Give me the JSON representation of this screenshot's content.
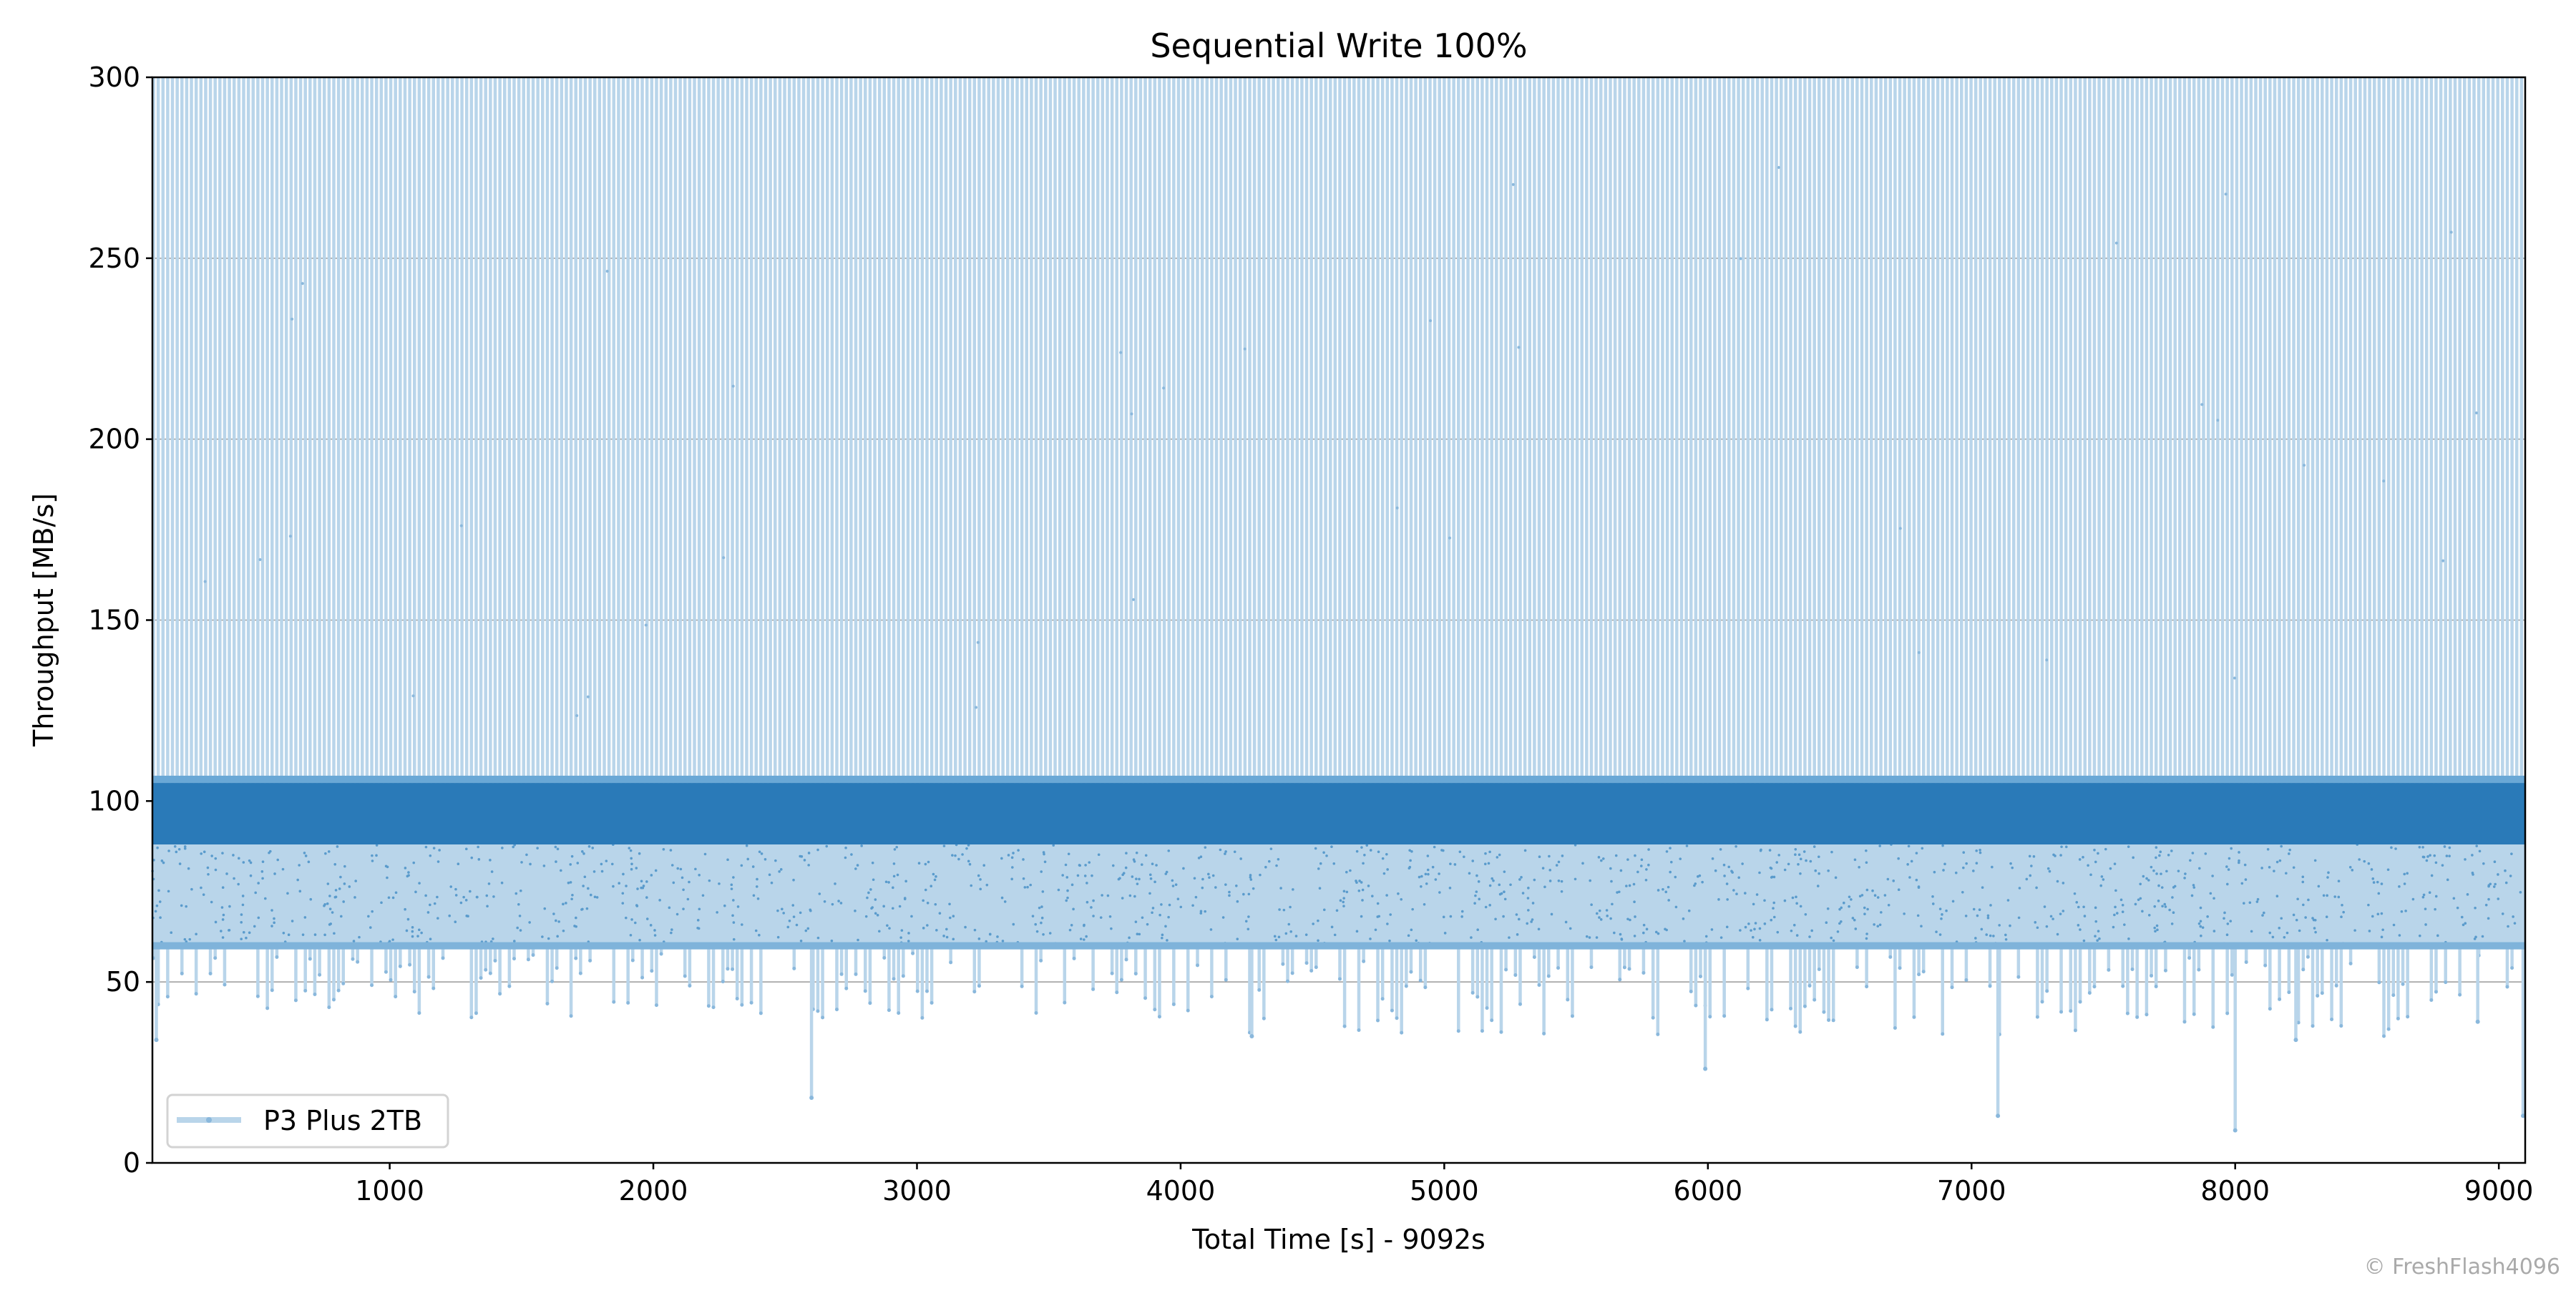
{
  "chart_data": {
    "type": "line",
    "title": "Sequential Write 100%",
    "xlabel": "Total Time [s] - 9092s",
    "ylabel": "Throughput [MB/s]",
    "xlim": [
      100,
      9100
    ],
    "ylim": [
      0,
      300
    ],
    "xticks": [
      1000,
      2000,
      3000,
      4000,
      5000,
      6000,
      7000,
      8000,
      9000
    ],
    "yticks": [
      0,
      50,
      100,
      150,
      200,
      250,
      300
    ],
    "grid": "horizontal",
    "legend": {
      "placement": "lower-left",
      "entries": [
        "P3 Plus 2TB"
      ]
    },
    "series": [
      {
        "name": "P3 Plus 2TB",
        "color": "#1f77b4",
        "total_time_s": 9092,
        "burst_period_s": 18,
        "burst_peak_min": 300,
        "dense_band": [
          88,
          105
        ],
        "typical_low": 60,
        "notable_dips": [
          {
            "x": 115,
            "y": 34
          },
          {
            "x": 2600,
            "y": 18
          },
          {
            "x": 4270,
            "y": 35
          },
          {
            "x": 5990,
            "y": 26
          },
          {
            "x": 7100,
            "y": 13
          },
          {
            "x": 8000,
            "y": 9
          },
          {
            "x": 8230,
            "y": 34
          },
          {
            "x": 8920,
            "y": 39
          },
          {
            "x": 9092,
            "y": 13
          }
        ]
      }
    ]
  },
  "watermark": "© FreshFlash4096"
}
